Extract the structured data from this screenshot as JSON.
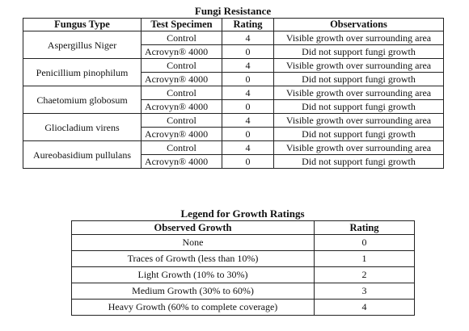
{
  "fungi_table": {
    "title": "Fungi Resistance",
    "headers": [
      "Fungus Type",
      "Test Specimen",
      "Rating",
      "Observations"
    ],
    "rows": [
      {
        "fungus": "Aspergillus Niger",
        "tests": [
          {
            "specimen": "Control",
            "rating": 4,
            "observation": "Visible growth over surrounding area"
          },
          {
            "specimen": "Acrovyn® 4000",
            "rating": 0,
            "observation": "Did not support fungi growth"
          }
        ]
      },
      {
        "fungus": "Penicillium pinophilum",
        "tests": [
          {
            "specimen": "Control",
            "rating": 4,
            "observation": "Visible growth over surrounding area"
          },
          {
            "specimen": "Acrovyn® 4000",
            "rating": 0,
            "observation": "Did not support fungi growth"
          }
        ]
      },
      {
        "fungus": "Chaetomium globosum",
        "tests": [
          {
            "specimen": "Control",
            "rating": 4,
            "observation": "Visible growth over surrounding area"
          },
          {
            "specimen": "Acrovyn® 4000",
            "rating": 0,
            "observation": "Did not support fungi growth"
          }
        ]
      },
      {
        "fungus": "Gliocladium virens",
        "tests": [
          {
            "specimen": "Control",
            "rating": 4,
            "observation": "Visible growth over surrounding area"
          },
          {
            "specimen": "Acrovyn® 4000",
            "rating": 0,
            "observation": "Did not support fungi growth"
          }
        ]
      },
      {
        "fungus": "Aureobasidium pullulans",
        "tests": [
          {
            "specimen": "Control",
            "rating": 4,
            "observation": "Visible growth over surrounding area"
          },
          {
            "specimen": "Acrovyn® 4000",
            "rating": 0,
            "observation": "Did not support fungi growth"
          }
        ]
      }
    ]
  },
  "legend_table": {
    "title": "Legend for Growth Ratings",
    "headers": [
      "Observed Growth",
      "Rating"
    ],
    "rows": [
      {
        "growth": "None",
        "rating": 0
      },
      {
        "growth": "Traces of Growth (less than 10%)",
        "rating": 1
      },
      {
        "growth": "Light Growth (10% to 30%)",
        "rating": 2
      },
      {
        "growth": "Medium Growth (30% to 60%)",
        "rating": 3
      },
      {
        "growth": "Heavy Growth (60% to complete coverage)",
        "rating": 4
      }
    ]
  }
}
